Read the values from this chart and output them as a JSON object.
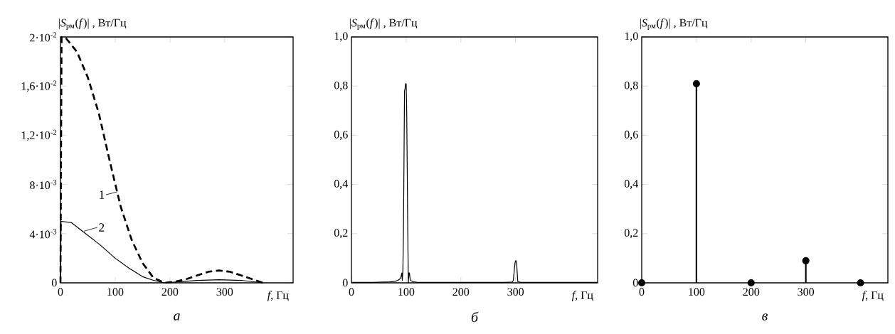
{
  "chart_data": [
    {
      "type": "line",
      "xlabel": "*f*, Гц",
      "ylabel": "|*S*$_{рм}$(*f*)| , Вт/Гц",
      "annotations": [
        "а",
        {
          "text": "1",
          "x": 104,
          "y": 0.0074
        },
        {
          "text": "2",
          "x": 43,
          "y": 0.0042
        }
      ],
      "xlim": [
        0,
        425
      ],
      "ylim": [
        0,
        0.02
      ],
      "xticks": [
        0,
        100,
        200,
        300
      ],
      "yticks": [
        0,
        {
          "value": 0.004,
          "label": "4·10$^{-3}$"
        },
        {
          "value": 0.008,
          "label": "8·10$^{-3}$"
        },
        {
          "value": 0.012,
          "label": "1,2·10$^{-2}$"
        },
        {
          "value": 0.016,
          "label": "1,6·10$^{-2}$"
        },
        {
          "value": 0.02,
          "label": "2·10$^{-2}$"
        }
      ],
      "series": [
        {
          "color": "#000000",
          "line_style": "dashed",
          "x": [
            0,
            2,
            10,
            30,
            50,
            70,
            90,
            110,
            130,
            150,
            170,
            190,
            210,
            230,
            250,
            270,
            290,
            310,
            330,
            350,
            370
          ],
          "values": [
            0,
            0.02,
            0.0199,
            0.0188,
            0.0167,
            0.0138,
            0.0099,
            0.0062,
            0.0035,
            0.0016,
            0.0004,
            0,
            0.0001,
            0.0003,
            0.0006,
            0.0009,
            0.001,
            0.0009,
            0.0006,
            0.0003,
            0
          ]
        },
        {
          "color": "#000000",
          "line_style": "solid",
          "x": [
            0,
            1,
            20,
            40,
            72,
            100,
            125,
            150,
            170,
            190,
            220,
            250,
            290,
            330,
            370
          ],
          "values": [
            0,
            0.005,
            0.0049,
            0.0042,
            0.0031,
            0.002,
            0.0012,
            0.0005,
            0.0002,
            0,
            0.0001,
            0.0002,
            0.00025,
            0.0002,
            0
          ]
        }
      ]
    },
    {
      "type": "line",
      "xlabel": "*f*, Гц",
      "ylabel": "|*S*$_{рм}$(*f*)| , Вт/Гц",
      "annotations": [
        "б"
      ],
      "xlim": [
        0,
        450
      ],
      "ylim": [
        0,
        1
      ],
      "xticks": [
        0,
        100,
        200,
        300
      ],
      "yticks": [
        0,
        {
          "value": 0.2,
          "label": "0,2"
        },
        {
          "value": 0.4,
          "label": "0,4"
        },
        {
          "value": 0.6,
          "label": "0,6"
        },
        {
          "value": 0.8,
          "label": "0,8"
        },
        {
          "value": 1,
          "label": "1,0"
        }
      ],
      "series": [
        {
          "color": "#000000",
          "line_style": "solid",
          "x": [
            0,
            40,
            70,
            80,
            85,
            88,
            90,
            92,
            93,
            94,
            95,
            96,
            97,
            98,
            99,
            100,
            101,
            102,
            103,
            104,
            105,
            106,
            107,
            108,
            112,
            120,
            200,
            280,
            294,
            296,
            298,
            299,
            300,
            301,
            302,
            303,
            304,
            310,
            400,
            450
          ],
          "values": [
            0.002,
            0.002,
            0.004,
            0.006,
            0.01,
            0.015,
            0.02,
            0.04,
            0.01,
            0.05,
            0.2,
            0.48,
            0.78,
            0.79,
            0.81,
            0.81,
            0.7,
            0.45,
            0.2,
            0,
            0.04,
            0.04,
            0.02,
            0.01,
            0.005,
            0.002,
            0.002,
            0.002,
            0.003,
            0.01,
            0.06,
            0.08,
            0.09,
            0.09,
            0.08,
            0.04,
            0.005,
            0.002,
            0.002,
            0.002
          ]
        }
      ]
    },
    {
      "type": "lollipop",
      "xlabel": "*f*, Гц",
      "ylabel": "|*S*$_{рм}$(*f*)| , Вт/Гц",
      "annotations": [
        "в"
      ],
      "xlim": [
        0,
        450
      ],
      "ylim": [
        0,
        1
      ],
      "xticks": [
        0,
        100,
        200,
        300
      ],
      "yticks": [
        0,
        {
          "value": 0.2,
          "label": "0,2"
        },
        {
          "value": 0.4,
          "label": "0,4"
        },
        {
          "value": 0.6,
          "label": "0,6"
        },
        {
          "value": 0.8,
          "label": "0,8"
        },
        {
          "value": 1,
          "label": "1,0"
        }
      ],
      "marker": "circle",
      "color": "#000000",
      "x": [
        0,
        100,
        200,
        300,
        400
      ],
      "values": [
        0,
        0.81,
        0,
        0.09,
        0
      ]
    }
  ]
}
